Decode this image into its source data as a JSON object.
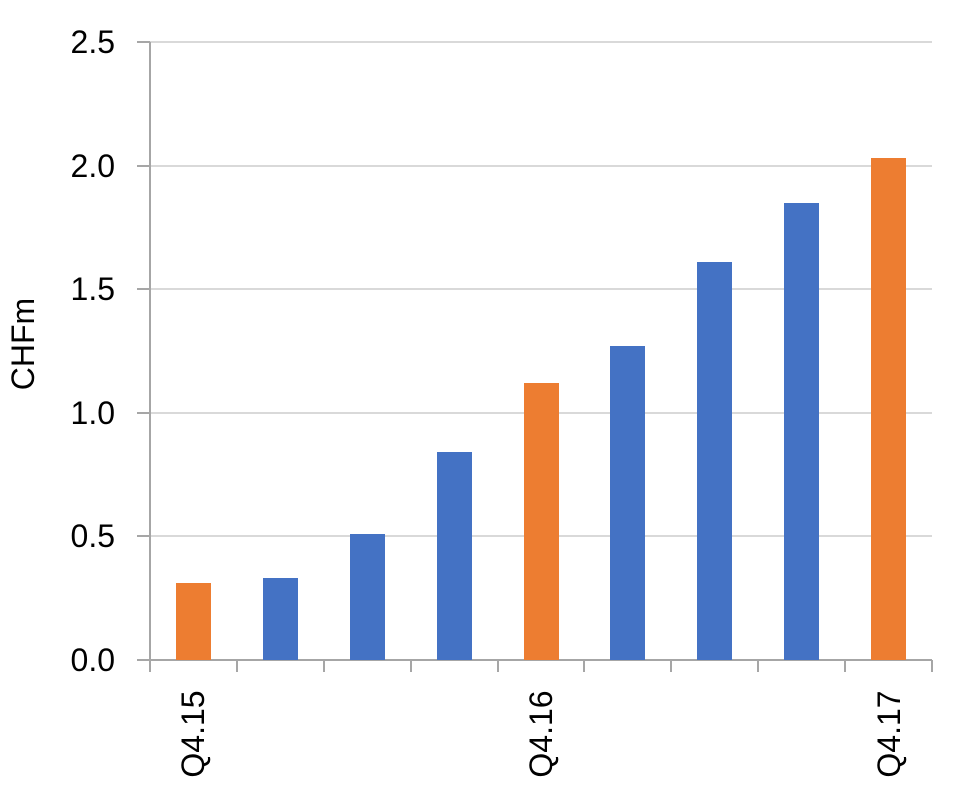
{
  "chart_data": {
    "type": "bar",
    "title": "",
    "xlabel": "",
    "ylabel": "CHFm",
    "categories": [
      "Q4.15",
      "",
      "",
      "",
      "Q4.16",
      "",
      "",
      "",
      "Q4.17"
    ],
    "values": [
      0.31,
      0.33,
      0.51,
      0.84,
      1.12,
      1.27,
      1.61,
      1.85,
      2.03
    ],
    "bar_color_keys": [
      "orange",
      "blue",
      "blue",
      "blue",
      "orange",
      "blue",
      "blue",
      "blue",
      "orange"
    ],
    "y_ticks": [
      "0.0",
      "0.5",
      "1.0",
      "1.5",
      "2.0",
      "2.5"
    ],
    "y_tick_values": [
      0.0,
      0.5,
      1.0,
      1.5,
      2.0,
      2.5
    ],
    "ylim": [
      0,
      2.5
    ],
    "grid": true,
    "legend": "none",
    "x_label_rotation_deg": 90
  },
  "colors": {
    "blue": "#4472C4",
    "orange": "#ED7D31",
    "gridline": "#D9D9D9",
    "axis": "#A6A6A6",
    "text": "#000000",
    "background": "#FFFFFF"
  }
}
